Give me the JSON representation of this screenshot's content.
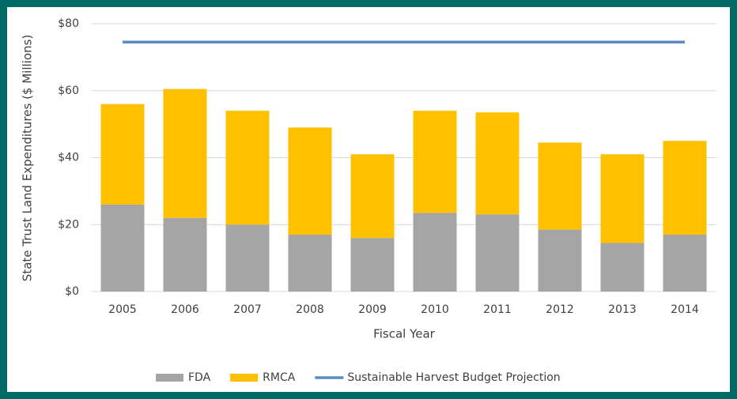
{
  "chart_data": {
    "type": "bar",
    "stacked": true,
    "x_label": "Fiscal Year",
    "y_label": "State Trust Land Expenditures ($ Millions)",
    "categories": [
      "2005",
      "2006",
      "2007",
      "2008",
      "2009",
      "2010",
      "2011",
      "2012",
      "2013",
      "2014"
    ],
    "series": [
      {
        "name": "FDA",
        "color": "#a5a5a5",
        "values": [
          26,
          22,
          20,
          17,
          16,
          23.5,
          23,
          18.5,
          14.5,
          17
        ]
      },
      {
        "name": "RMCA",
        "color": "#ffc000",
        "values": [
          30,
          38.5,
          34,
          32,
          25,
          30.5,
          30.5,
          26,
          26.5,
          28
        ]
      },
      {
        "name": "Sustainable Harvest Budget Projection",
        "color": "#5b8bc6",
        "type": "line",
        "values": [
          74.5,
          74.5,
          74.5,
          74.5,
          74.5,
          74.5,
          74.5,
          74.5,
          74.5,
          74.5
        ]
      }
    ],
    "ylim": [
      0,
      80
    ],
    "yticks": [
      {
        "value": 0,
        "label": "$0"
      },
      {
        "value": 20,
        "label": "$20"
      },
      {
        "value": 40,
        "label": "$40"
      },
      {
        "value": 60,
        "label": "$60"
      },
      {
        "value": 80,
        "label": "$80"
      }
    ],
    "grid": true,
    "legend": "bottom"
  }
}
